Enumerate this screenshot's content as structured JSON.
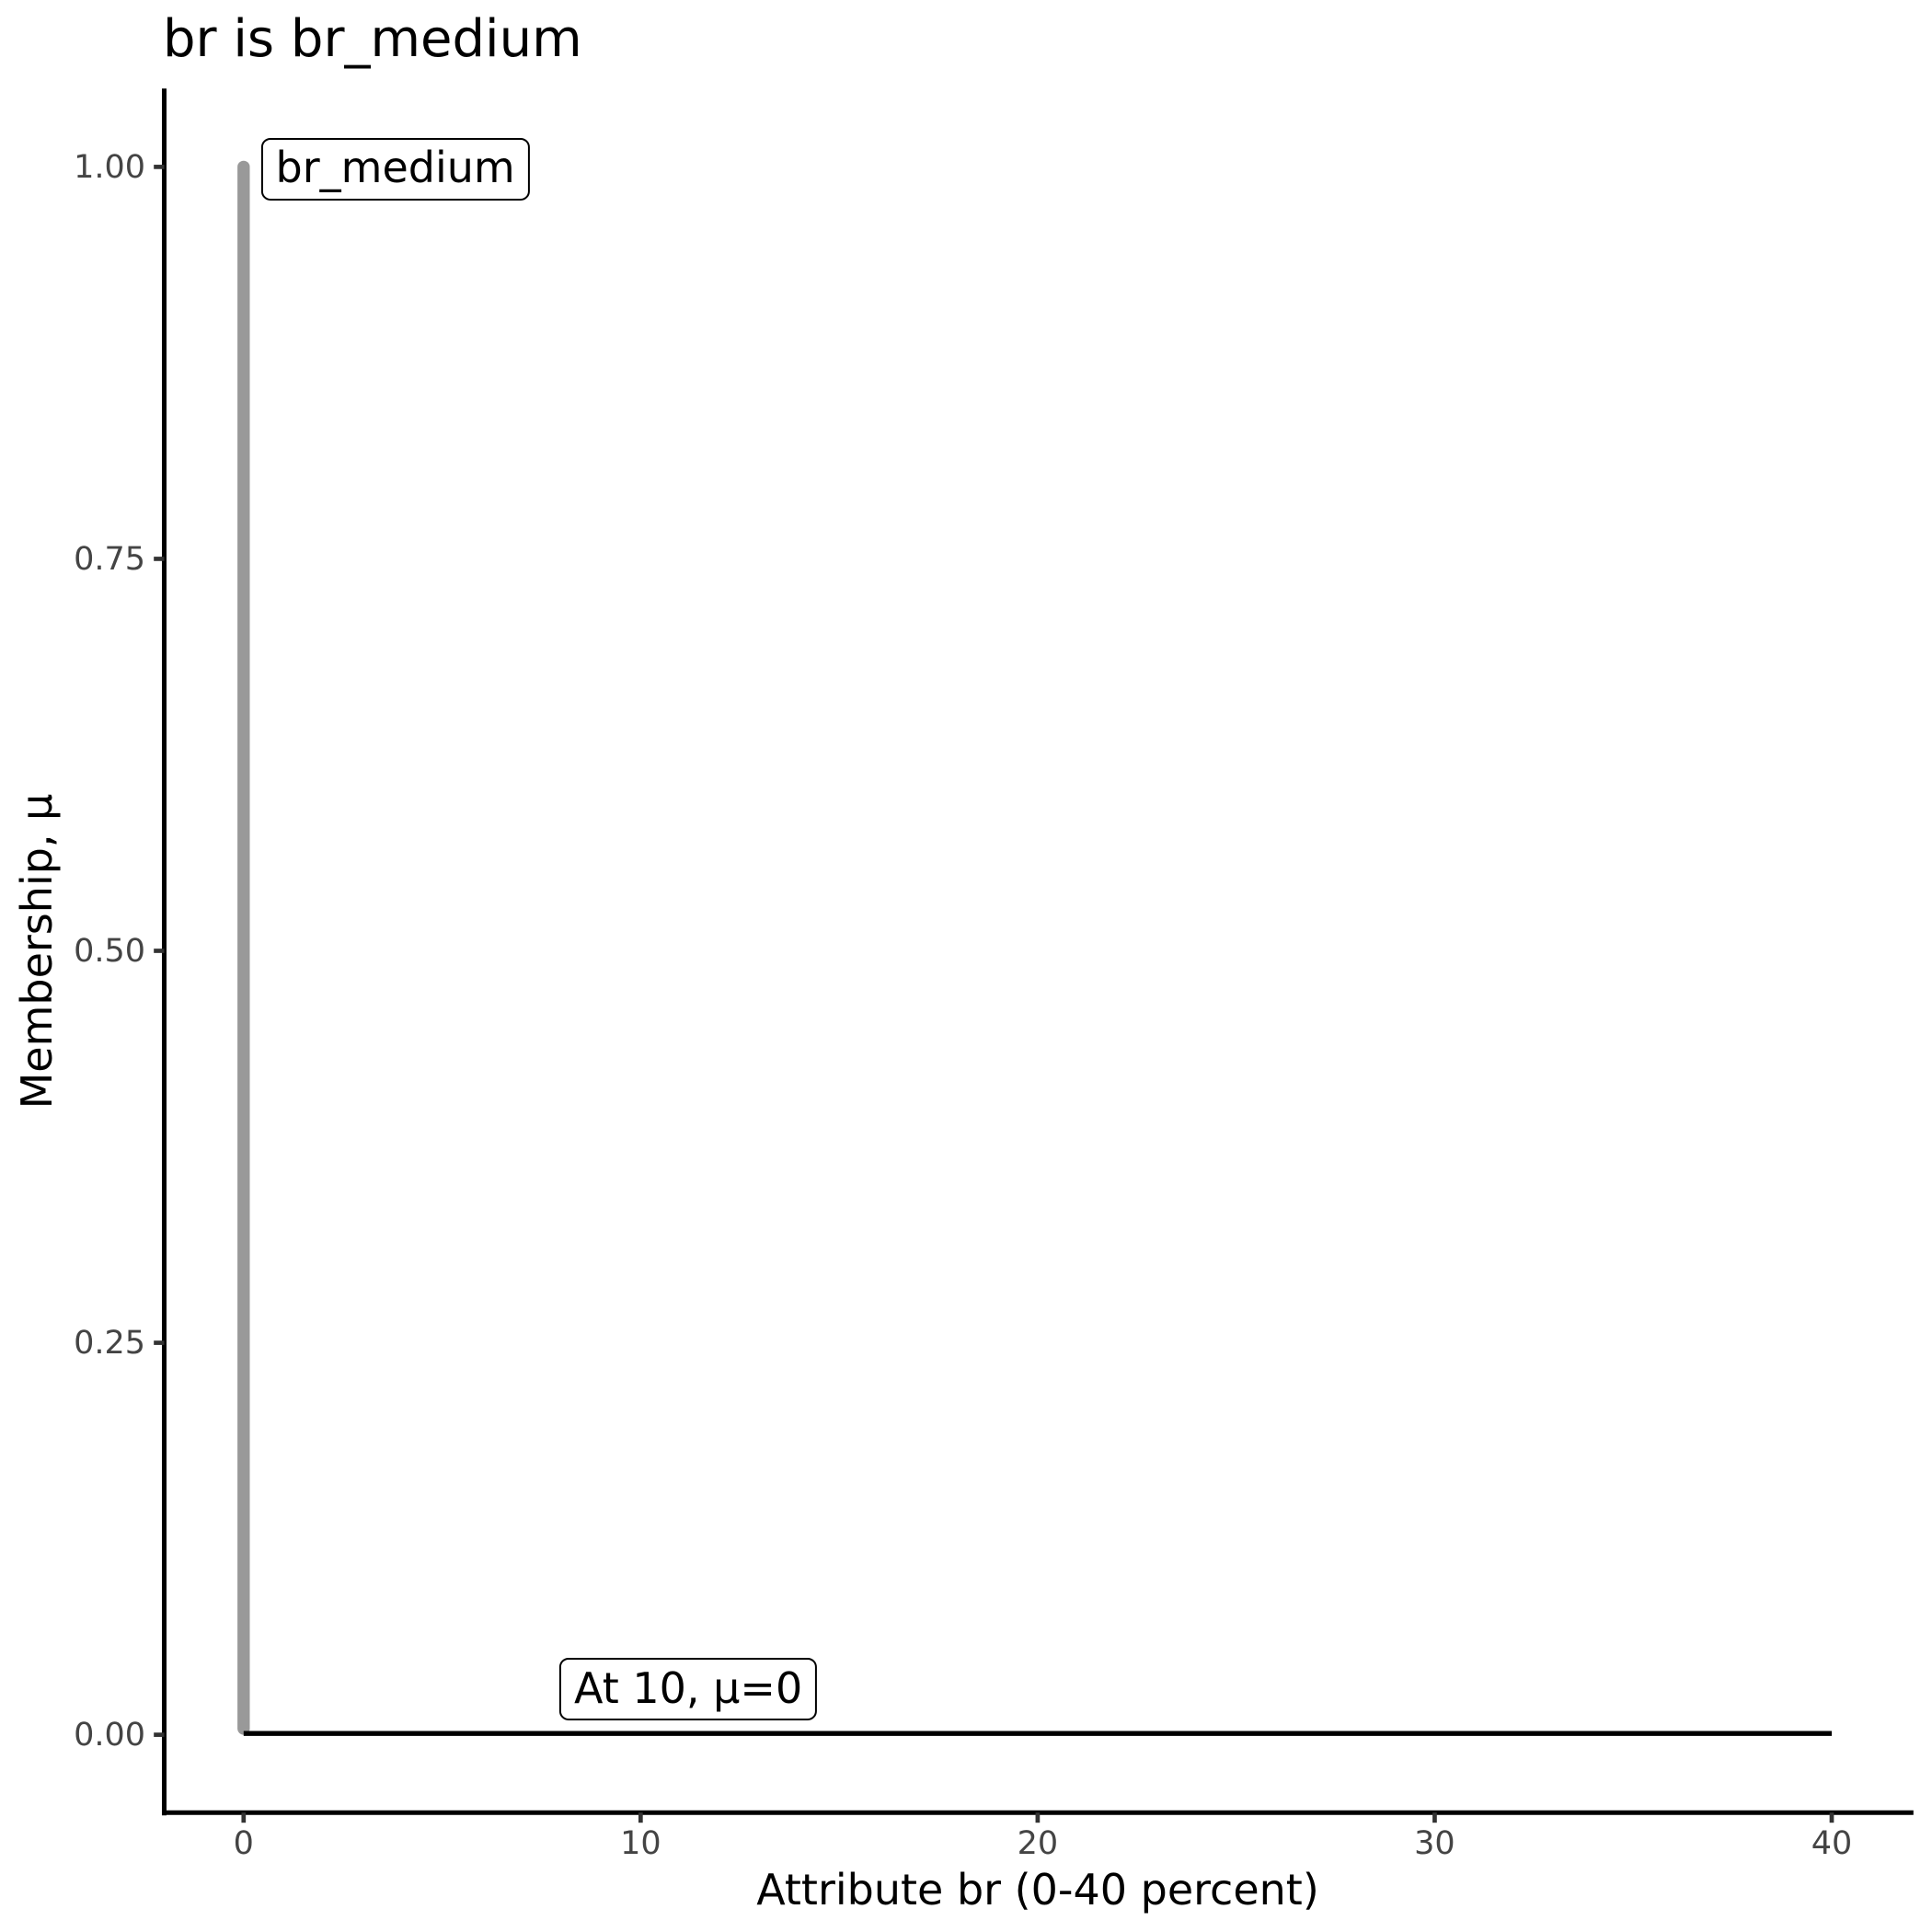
{
  "figure": {
    "background_color": "#ffffff"
  },
  "chart_data": {
    "type": "line",
    "title": "br is br_medium",
    "xlabel": "Attribute br (0-40 percent)",
    "ylabel": "Membership, μ",
    "xlim": [
      0,
      40
    ],
    "ylim": [
      0,
      1
    ],
    "grid": false,
    "legend_position": "none",
    "x_ticks": [
      {
        "value": 0,
        "label": "0"
      },
      {
        "value": 10,
        "label": "10"
      },
      {
        "value": 20,
        "label": "20"
      },
      {
        "value": 30,
        "label": "30"
      },
      {
        "value": 40,
        "label": "40"
      }
    ],
    "y_ticks": [
      {
        "value": 0.0,
        "label": "0.00"
      },
      {
        "value": 0.25,
        "label": "0.25"
      },
      {
        "value": 0.5,
        "label": "0.50"
      },
      {
        "value": 0.75,
        "label": "0.75"
      },
      {
        "value": 1.0,
        "label": "1.00"
      }
    ],
    "series": [
      {
        "name": "membership-function",
        "color": "#999999",
        "linewidth": 13.4,
        "linecap": "round",
        "points": [
          [
            0,
            0
          ],
          [
            0,
            1
          ]
        ]
      },
      {
        "name": "zero-line",
        "color": "#000000",
        "linewidth": 5.3,
        "linecap": "butt",
        "points": [
          [
            0,
            0
          ],
          [
            40,
            0
          ]
        ]
      }
    ],
    "annotations": [
      {
        "text": "br_medium",
        "x": 3.82,
        "y": 1.0
      },
      {
        "text": "At 10, μ=0",
        "x": 11.2,
        "y": 0.03
      }
    ],
    "theme": {
      "axis_line_color": "#000000",
      "tick_color": "#333333",
      "tick_label_color": "#444444"
    }
  }
}
